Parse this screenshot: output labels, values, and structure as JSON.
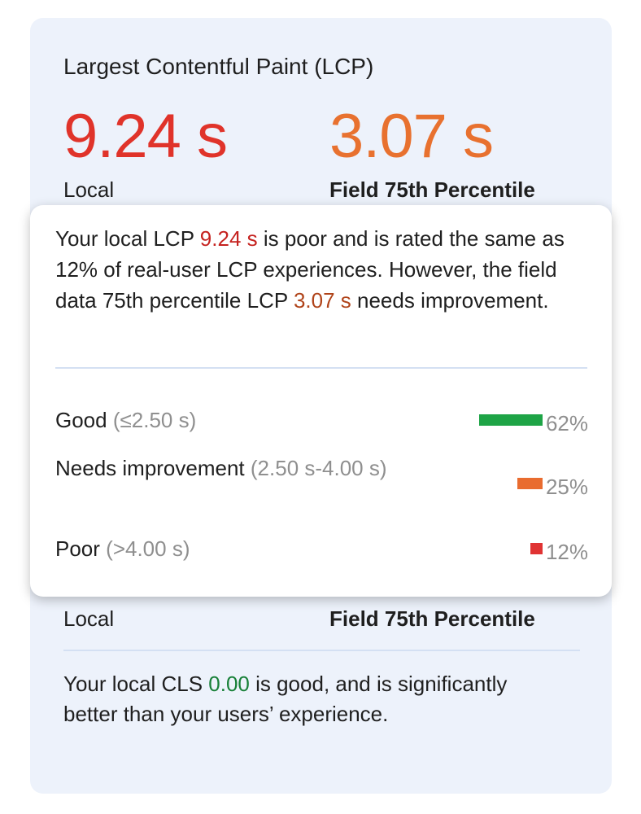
{
  "lcp": {
    "title": "Largest Contentful Paint (LCP)",
    "local_value": "9.24 s",
    "local_label": "Local",
    "field_value": "3.07 s",
    "field_label": "Field 75th Percentile"
  },
  "tooltip": {
    "t1": "Your local LCP ",
    "local_value": "9.24 s",
    "t2": " is poor and is rated the same as 12% of real-user LCP experiences. However, the field data 75th percentile LCP ",
    "field_value": "3.07 s",
    "t3": " needs improvement.",
    "rows": [
      {
        "label": "Good",
        "range": "(≤2.50 s)",
        "percent": 62,
        "percent_label": "62%",
        "color": "#1ea446"
      },
      {
        "label": "Needs improvement",
        "range": "(2.50 s-4.00 s)",
        "percent": 25,
        "percent_label": "25%",
        "color": "#e96c2f"
      },
      {
        "label": "Poor",
        "range": "(>4.00 s)",
        "percent": 12,
        "percent_label": "12%",
        "color": "#e03333"
      }
    ]
  },
  "cls": {
    "local_label": "Local",
    "field_label": "Field 75th Percentile",
    "t1": "Your local CLS ",
    "local_value": "0.00",
    "t2": " is good, and is significantly better than your users’ experience."
  },
  "colors": {
    "poor": "#d93025",
    "needs_improvement": "#e8711c",
    "good": "#188038",
    "poor_text": "#c5221f",
    "ni_text": "#b0441a"
  }
}
